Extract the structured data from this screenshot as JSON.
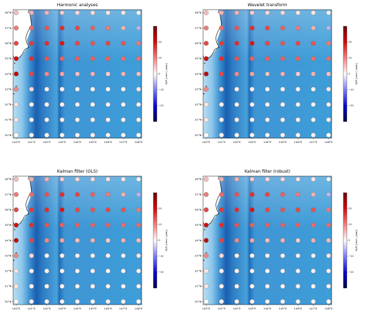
{
  "chart_data": [
    {
      "type": "scatter",
      "title": "Harmonic analyses",
      "xlabel": "",
      "ylabel": "",
      "xlim": [
        139.8,
        148.2
      ],
      "ylim": [
        29.8,
        38.2
      ],
      "xticks": [
        "140°E",
        "141°E",
        "142°E",
        "143°E",
        "144°E",
        "145°E",
        "146°E",
        "147°E",
        "148°E"
      ],
      "yticks": [
        "30°N",
        "31°N",
        "32°N",
        "33°N",
        "34°N",
        "35°N",
        "36°N",
        "37°N",
        "38°N"
      ],
      "grid": false,
      "colorbar": {
        "label": "SLR [mm / year]",
        "range": [
          -30,
          30
        ],
        "ticks": [
          "20",
          "10",
          "0",
          "−10",
          "−20"
        ],
        "colors": [
          "#00005a",
          "#ffffff",
          "#780000"
        ]
      },
      "grid_points": {
        "lons": [
          140,
          141,
          142,
          143,
          144,
          145,
          146,
          147,
          148
        ],
        "lats": [
          30,
          31,
          32,
          33,
          34,
          35,
          36,
          37,
          38
        ]
      },
      "sla_trend": [
        [
          0,
          1,
          1,
          1,
          1,
          1,
          1,
          1,
          0
        ],
        [
          2,
          1,
          1,
          1,
          1,
          1,
          1,
          1,
          1
        ],
        [
          2,
          1,
          1,
          1,
          1,
          1,
          1,
          1,
          1
        ],
        [
          9,
          3,
          1,
          1,
          1,
          1,
          1,
          1,
          2
        ],
        [
          22,
          14,
          9,
          7,
          5,
          6,
          4,
          6,
          5
        ],
        [
          20,
          16,
          13,
          12,
          12,
          12,
          12,
          11,
          11
        ],
        [
          14,
          15,
          16,
          18,
          14,
          13,
          14,
          13,
          10
        ],
        [
          10,
          11,
          13,
          16,
          14,
          12,
          10,
          6,
          -6
        ],
        [
          5,
          6,
          6,
          4,
          3,
          3,
          2,
          2,
          -1
        ]
      ]
    },
    {
      "type": "scatter",
      "title": "Wavelet transform",
      "xlabel": "",
      "ylabel": "",
      "xlim": [
        139.8,
        148.2
      ],
      "ylim": [
        29.8,
        38.2
      ],
      "xticks": [
        "140°E",
        "141°E",
        "142°E",
        "143°E",
        "144°E",
        "145°E",
        "146°E",
        "147°E",
        "148°E"
      ],
      "yticks": [
        "30°N",
        "31°N",
        "32°N",
        "33°N",
        "34°N",
        "35°N",
        "36°N",
        "37°N",
        "38°N"
      ],
      "grid": false,
      "colorbar": {
        "label": "SLR [mm / year]",
        "range": [
          -30,
          30
        ],
        "ticks": [
          "20",
          "10",
          "0",
          "−10",
          "−20"
        ],
        "colors": [
          "#00005a",
          "#ffffff",
          "#780000"
        ]
      },
      "grid_points": {
        "lons": [
          140,
          141,
          142,
          143,
          144,
          145,
          146,
          147,
          148
        ],
        "lats": [
          30,
          31,
          32,
          33,
          34,
          35,
          36,
          37,
          38
        ]
      },
      "sla_trend": [
        [
          0,
          1,
          1,
          1,
          1,
          1,
          1,
          1,
          0
        ],
        [
          2,
          1,
          1,
          1,
          1,
          1,
          1,
          1,
          1
        ],
        [
          2,
          1,
          1,
          1,
          1,
          1,
          1,
          1,
          1
        ],
        [
          9,
          3,
          1,
          1,
          1,
          1,
          1,
          1,
          2
        ],
        [
          22,
          14,
          9,
          7,
          5,
          6,
          4,
          6,
          5
        ],
        [
          20,
          16,
          13,
          12,
          12,
          12,
          12,
          11,
          11
        ],
        [
          14,
          15,
          16,
          18,
          14,
          13,
          14,
          13,
          10
        ],
        [
          10,
          11,
          13,
          16,
          14,
          12,
          10,
          6,
          -6
        ],
        [
          5,
          6,
          6,
          4,
          3,
          3,
          2,
          2,
          -1
        ]
      ]
    },
    {
      "type": "scatter",
      "title": "Kalman filter (OLS)",
      "xlabel": "",
      "ylabel": "",
      "xlim": [
        139.8,
        148.2
      ],
      "ylim": [
        29.8,
        38.2
      ],
      "xticks": [
        "140°E",
        "141°E",
        "142°E",
        "143°E",
        "144°E",
        "145°E",
        "146°E",
        "147°E",
        "148°E"
      ],
      "yticks": [
        "30°N",
        "31°N",
        "32°N",
        "33°N",
        "34°N",
        "35°N",
        "36°N",
        "37°N",
        "38°N"
      ],
      "grid": false,
      "colorbar": {
        "label": "SLR [mm / year]",
        "range": [
          -30,
          30
        ],
        "ticks": [
          "20",
          "10",
          "0",
          "−10",
          "−20"
        ],
        "colors": [
          "#00005a",
          "#ffffff",
          "#780000"
        ]
      },
      "grid_points": {
        "lons": [
          140,
          141,
          142,
          143,
          144,
          145,
          146,
          147,
          148
        ],
        "lats": [
          30,
          31,
          32,
          33,
          34,
          35,
          36,
          37,
          38
        ]
      },
      "sla_trend": [
        [
          0,
          1,
          1,
          1,
          1,
          1,
          1,
          1,
          0
        ],
        [
          2,
          1,
          1,
          1,
          1,
          1,
          1,
          1,
          1
        ],
        [
          2,
          1,
          1,
          1,
          1,
          1,
          1,
          1,
          1
        ],
        [
          9,
          3,
          1,
          1,
          1,
          1,
          1,
          1,
          2
        ],
        [
          22,
          14,
          9,
          7,
          5,
          6,
          4,
          6,
          5
        ],
        [
          20,
          16,
          13,
          12,
          12,
          12,
          12,
          11,
          11
        ],
        [
          14,
          15,
          16,
          18,
          14,
          13,
          14,
          13,
          10
        ],
        [
          10,
          11,
          13,
          16,
          14,
          12,
          10,
          6,
          -6
        ],
        [
          5,
          6,
          6,
          4,
          3,
          3,
          2,
          2,
          -1
        ]
      ]
    },
    {
      "type": "scatter",
      "title": "Kalman filter (robust)",
      "xlabel": "",
      "ylabel": "",
      "xlim": [
        139.8,
        148.2
      ],
      "ylim": [
        29.8,
        38.2
      ],
      "xticks": [
        "140°E",
        "141°E",
        "142°E",
        "143°E",
        "144°E",
        "145°E",
        "146°E",
        "147°E",
        "148°E"
      ],
      "yticks": [
        "30°N",
        "31°N",
        "32°N",
        "33°N",
        "34°N",
        "35°N",
        "36°N",
        "37°N",
        "38°N"
      ],
      "grid": false,
      "colorbar": {
        "label": "SLR [mm / year]",
        "range": [
          -30,
          30
        ],
        "ticks": [
          "20",
          "10",
          "0",
          "−10",
          "−20"
        ],
        "colors": [
          "#00005a",
          "#ffffff",
          "#780000"
        ]
      },
      "grid_points": {
        "lons": [
          140,
          141,
          142,
          143,
          144,
          145,
          146,
          147,
          148
        ],
        "lats": [
          30,
          31,
          32,
          33,
          34,
          35,
          36,
          37,
          38
        ]
      },
      "sla_trend": [
        [
          0,
          1,
          1,
          1,
          1,
          1,
          1,
          1,
          0
        ],
        [
          2,
          1,
          1,
          1,
          1,
          1,
          1,
          1,
          1
        ],
        [
          2,
          1,
          1,
          1,
          1,
          1,
          1,
          1,
          1
        ],
        [
          9,
          3,
          1,
          1,
          1,
          1,
          1,
          1,
          2
        ],
        [
          22,
          14,
          9,
          7,
          5,
          6,
          4,
          6,
          5
        ],
        [
          20,
          16,
          13,
          12,
          12,
          12,
          12,
          11,
          11
        ],
        [
          14,
          15,
          16,
          18,
          14,
          13,
          14,
          13,
          10
        ],
        [
          10,
          11,
          13,
          16,
          14,
          12,
          10,
          6,
          -6
        ],
        [
          5,
          6,
          6,
          4,
          3,
          3,
          2,
          2,
          -1
        ]
      ]
    }
  ]
}
